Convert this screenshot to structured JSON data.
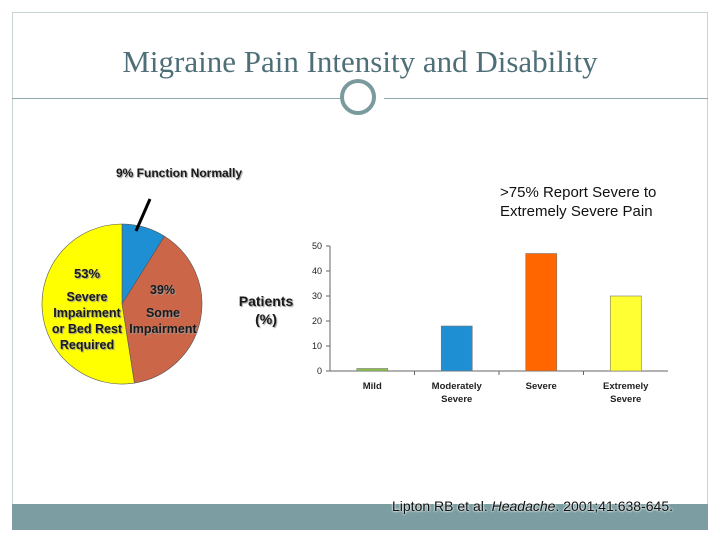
{
  "title": "Migraine Pain Intensity and Disability",
  "pie": {
    "annotation": "9% Function Normally",
    "label_53": "53%",
    "label_severe": [
      "Severe",
      "Impairment",
      "or Bed Rest",
      "Required"
    ],
    "label_39": "39%",
    "label_some": [
      "Some",
      "Impairment"
    ]
  },
  "bar_annotation": [
    ">75% Report Severe to",
    "Extremely Severe Pain"
  ],
  "ylabel": [
    "Patients",
    "(%)"
  ],
  "citation": {
    "before": "Lipton RB et al. ",
    "journal": "Headache",
    "after": ". 2001;41:638-645."
  },
  "colors": {
    "title": "#4f6f78",
    "frame": "#c8d3d3",
    "footer": "#7c9ea3",
    "ring": "#7a9a9e"
  },
  "chart_data": [
    {
      "type": "pie",
      "title": "",
      "slices": [
        {
          "label": "Function Normally",
          "value": 9,
          "color": "#1f8fd4"
        },
        {
          "label": "Some Impairment",
          "value": 39,
          "color": "#cc6649"
        },
        {
          "label": "Severe Impairment or Bed Rest Required",
          "value": 53,
          "color": "#ffff00"
        }
      ]
    },
    {
      "type": "bar",
      "title": "",
      "xlabel": "",
      "ylabel": "Patients (%)",
      "categories": [
        [
          "Mild"
        ],
        [
          "Moderately",
          "Severe"
        ],
        [
          "Severe"
        ],
        [
          "Extremely",
          "Severe"
        ]
      ],
      "values": [
        1,
        18,
        47,
        30
      ],
      "colors": [
        "#8bc34a",
        "#1f8fd4",
        "#ff6600",
        "#ffff33"
      ],
      "ylim": [
        0,
        50
      ],
      "yticks": [
        0,
        10,
        20,
        30,
        40,
        50
      ],
      "grid": false
    }
  ]
}
